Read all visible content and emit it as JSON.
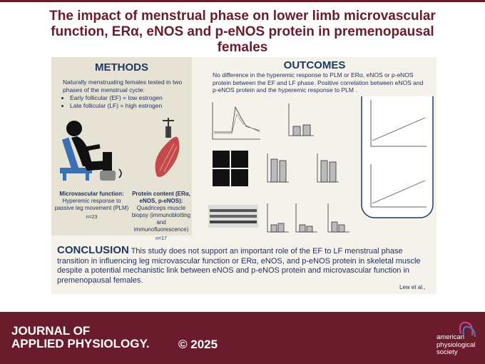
{
  "title": {
    "lines": [
      "The impact of menstrual phase on lower limb microvascular",
      "function, ERα, eNOS and p-eNOS protein in premenopausal",
      "females"
    ]
  },
  "methods": {
    "heading": "METHODS",
    "intro": "Naturally menstruating females tested in two phases of the menstrual cycle:",
    "bullets": [
      "Early follicular (EF) = low estrogen",
      "Late follicular (LF) = high estrogen"
    ],
    "microvascular": {
      "title": "Microvascular function:",
      "text": "Hyperemic response to passive leg movement (PLM)",
      "n": "n=23"
    },
    "protein": {
      "title": "Protein content (ERα, eNOS, p-eNOS):",
      "text": "Quadriceps muscle biopsy (immunoblotting and immunofluorescence)",
      "n": "n=17"
    }
  },
  "outcomes": {
    "heading": "OUTCOMES",
    "text": "No difference in the hyperemic response to PLM or ERα, eNOS or p-eNOS protein between the EF and LF phase. Positive correlation between eNOS and p-eNOS protein and the hyperemic response to PLM ."
  },
  "conclusion": {
    "heading": "CONCLUSION",
    "text": "This study does not support an important role of the EF to LF menstrual phase transition in influencing leg microvascular function or ERα, eNOS, and p-eNOS protein in skeletal muscle despite a potential mechanistic link between eNOS and p-eNOS protein and microvascular function in premenopausal females.",
    "citation": "Lew et al.,"
  },
  "footer": {
    "journal": [
      "JOURNAL OF",
      "APPLIED PHYSIOLOGY."
    ],
    "year": "© 2025",
    "society": [
      "american",
      "physiological",
      "society"
    ]
  }
}
